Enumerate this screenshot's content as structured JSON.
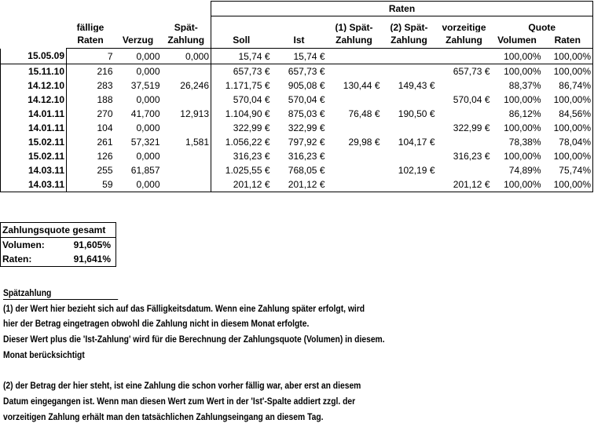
{
  "header": {
    "group_raten": "Raten",
    "faellige": "fällige",
    "raten": "Raten",
    "verzug": "Verzug",
    "spaet1": "Spät-",
    "zahlung": "Zahlung",
    "soll": "Soll",
    "ist": "Ist",
    "spaet_1": "(1) Spät-",
    "spaet_2": "(2) Spät-",
    "vorzeitige": "vorzeitige",
    "quote": "Quote",
    "volumen": "Volumen",
    "quote_raten": "Raten"
  },
  "rows": [
    {
      "date": "15.05.09",
      "faellig": "7",
      "verzug": "0,000",
      "spaet": "0,000",
      "soll": "15,74 €",
      "ist": "15,74 €",
      "s1": "",
      "s2": "",
      "vorz": "",
      "vol": "100,00%",
      "raten": "100,00%"
    },
    {
      "date": "15.11.10",
      "faellig": "216",
      "verzug": "0,000",
      "spaet": "",
      "soll": "657,73 €",
      "ist": "657,73 €",
      "s1": "",
      "s2": "",
      "vorz": "657,73 €",
      "vol": "100,00%",
      "raten": "100,00%"
    },
    {
      "date": "14.12.10",
      "faellig": "283",
      "verzug": "37,519",
      "spaet": "26,246",
      "soll": "1.171,75 €",
      "ist": "905,08 €",
      "s1": "130,44 €",
      "s2": "149,43 €",
      "vorz": "",
      "vol": "88,37%",
      "raten": "86,74%"
    },
    {
      "date": "14.12.10",
      "faellig": "188",
      "verzug": "0,000",
      "spaet": "",
      "soll": "570,04 €",
      "ist": "570,04 €",
      "s1": "",
      "s2": "",
      "vorz": "570,04 €",
      "vol": "100,00%",
      "raten": "100,00%"
    },
    {
      "date": "14.01.11",
      "faellig": "270",
      "verzug": "41,700",
      "spaet": "12,913",
      "soll": "1.104,90 €",
      "ist": "875,03 €",
      "s1": "76,48 €",
      "s2": "190,50 €",
      "vorz": "",
      "vol": "86,12%",
      "raten": "84,56%"
    },
    {
      "date": "14.01.11",
      "faellig": "104",
      "verzug": "0,000",
      "spaet": "",
      "soll": "322,99 €",
      "ist": "322,99 €",
      "s1": "",
      "s2": "",
      "vorz": "322,99 €",
      "vol": "100,00%",
      "raten": "100,00%"
    },
    {
      "date": "15.02.11",
      "faellig": "261",
      "verzug": "57,321",
      "spaet": "1,581",
      "soll": "1.056,22 €",
      "ist": "797,92 €",
      "s1": "29,98 €",
      "s2": "104,17 €",
      "vorz": "",
      "vol": "78,38%",
      "raten": "78,04%"
    },
    {
      "date": "15.02.11",
      "faellig": "126",
      "verzug": "0,000",
      "spaet": "",
      "soll": "316,23 €",
      "ist": "316,23 €",
      "s1": "",
      "s2": "",
      "vorz": "316,23 €",
      "vol": "100,00%",
      "raten": "100,00%"
    },
    {
      "date": "14.03.11",
      "faellig": "255",
      "verzug": "61,857",
      "spaet": "",
      "soll": "1.025,55 €",
      "ist": "768,05 €",
      "s1": "",
      "s2": "102,19 €",
      "vorz": "",
      "vol": "74,89%",
      "raten": "75,74%"
    },
    {
      "date": "14.03.11",
      "faellig": "59",
      "verzug": "0,000",
      "spaet": "",
      "soll": "201,12 €",
      "ist": "201,12 €",
      "s1": "",
      "s2": "",
      "vorz": "201,12 €",
      "vol": "100,00%",
      "raten": "100,00%"
    }
  ],
  "summary": {
    "title": "Zahlungsquote gesamt",
    "volumen_label": "Volumen:",
    "volumen_value": "91,605%",
    "raten_label": "Raten:",
    "raten_value": "91,641%"
  },
  "notes": {
    "title": "Spätzahlung",
    "lines": [
      "(1) der Wert hier bezieht sich auf das Fälligkeitsdatum. Wenn eine Zahlung später erfolgt, wird",
      "hier der Betrag eingetragen obwohl die Zahlung nicht in diesem Monat erfolgte.",
      "Dieser Wert plus die 'Ist-Zahlung' wird für die Berechnung der Zahlungsquote (Volumen) in diesem.",
      "Monat berücksichtigt",
      "",
      "(2) der Betrag der hier steht, ist eine Zahlung die schon vorher fällig war, aber erst an diesem",
      "Datum eingegangen ist. Wenn man diesen Wert zum Wert in der 'Ist'-Spalte addiert zzgl. der",
      "vorzeitigen Zahlung erhält man den tatsächlichen Zahlungseingang an diesem Tag."
    ]
  }
}
